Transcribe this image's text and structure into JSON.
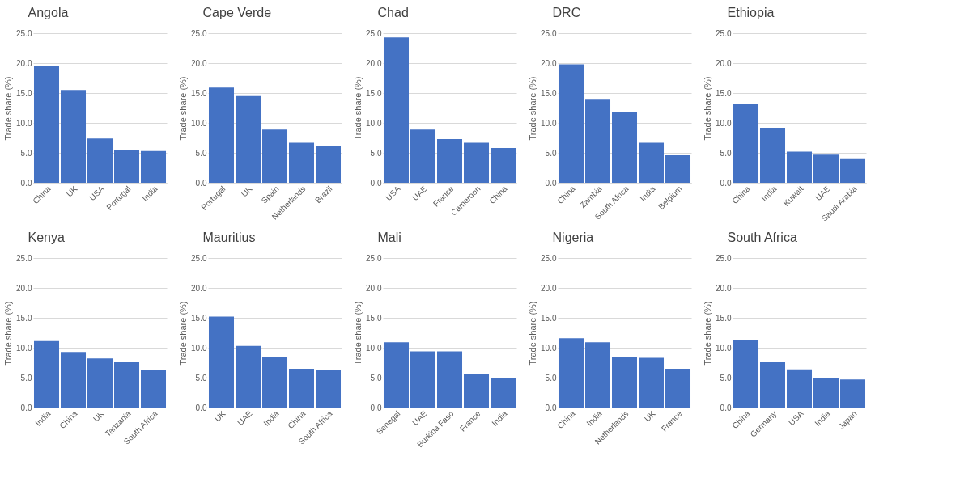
{
  "chart_data": [
    {
      "type": "bar",
      "title": "Angola",
      "ylabel": "Trade share (%)",
      "categories": [
        "China",
        "UK",
        "USA",
        "Portugal",
        "India"
      ],
      "values": [
        19.5,
        15.5,
        7.4,
        5.4,
        5.3
      ],
      "color": "#4472c4",
      "ylim": [
        0,
        25
      ],
      "yticks": [
        {
          "value": 0,
          "label": "0.0"
        },
        {
          "value": 5,
          "label": "5.0"
        },
        {
          "value": 10,
          "label": "10.0"
        },
        {
          "value": 15,
          "label": "15.0"
        },
        {
          "value": 20,
          "label": "20.0"
        },
        {
          "value": 25,
          "label": "25.0"
        }
      ],
      "grid": "y"
    },
    {
      "type": "bar",
      "title": "Cape Verde",
      "ylabel": "Trade share (%)",
      "categories": [
        "Portugal",
        "UK",
        "Spain",
        "Netherlands",
        "Brazil"
      ],
      "values": [
        15.9,
        14.5,
        8.9,
        6.7,
        6.1
      ],
      "color": "#4472c4",
      "ylim": [
        0,
        25
      ],
      "yticks": [
        {
          "value": 0,
          "label": "0.0"
        },
        {
          "value": 5,
          "label": "5.0"
        },
        {
          "value": 10,
          "label": "10.0"
        },
        {
          "value": 15,
          "label": "15.0"
        },
        {
          "value": 20,
          "label": "20.0"
        },
        {
          "value": 25,
          "label": "25.0"
        }
      ],
      "grid": "y"
    },
    {
      "type": "bar",
      "title": "Chad",
      "ylabel": "Trade share (%)",
      "categories": [
        "USA",
        "UAE",
        "France",
        "Cameroon",
        "China"
      ],
      "values": [
        24.3,
        8.9,
        7.3,
        6.7,
        5.8
      ],
      "color": "#4472c4",
      "ylim": [
        0,
        25
      ],
      "yticks": [
        {
          "value": 0,
          "label": "0.0"
        },
        {
          "value": 5,
          "label": "5.0"
        },
        {
          "value": 10,
          "label": "10.0"
        },
        {
          "value": 15,
          "label": "15.0"
        },
        {
          "value": 20,
          "label": "20.0"
        },
        {
          "value": 25,
          "label": "25.0"
        }
      ],
      "grid": "y"
    },
    {
      "type": "bar",
      "title": "DRC",
      "ylabel": "Trade share (%)",
      "categories": [
        "China",
        "Zambia",
        "South Africa",
        "India",
        "Belgium"
      ],
      "values": [
        19.8,
        13.9,
        11.9,
        6.7,
        4.6
      ],
      "color": "#4472c4",
      "ylim": [
        0,
        25
      ],
      "yticks": [
        {
          "value": 0,
          "label": "0.0"
        },
        {
          "value": 5,
          "label": "5.0"
        },
        {
          "value": 10,
          "label": "10.0"
        },
        {
          "value": 15,
          "label": "15.0"
        },
        {
          "value": 20,
          "label": "20.0"
        },
        {
          "value": 25,
          "label": "25.0"
        }
      ],
      "grid": "y"
    },
    {
      "type": "bar",
      "title": "Ethiopia",
      "ylabel": "Trade share (%)",
      "categories": [
        "China",
        "India",
        "Kuwait",
        "UAE",
        "Saudi Arabia"
      ],
      "values": [
        13.1,
        9.2,
        5.2,
        4.7,
        4.1
      ],
      "color": "#4472c4",
      "ylim": [
        0,
        25
      ],
      "yticks": [
        {
          "value": 0,
          "label": "0.0"
        },
        {
          "value": 5,
          "label": "5.0"
        },
        {
          "value": 10,
          "label": "10.0"
        },
        {
          "value": 15,
          "label": "15.0"
        },
        {
          "value": 20,
          "label": "20.0"
        },
        {
          "value": 25,
          "label": "25.0"
        }
      ],
      "grid": "y"
    },
    {
      "type": "bar",
      "title": "Kenya",
      "ylabel": "Trade share (%)",
      "categories": [
        "India",
        "China",
        "UK",
        "Tanzania",
        "South Africa"
      ],
      "values": [
        11.1,
        9.3,
        8.2,
        7.6,
        6.3
      ],
      "color": "#4472c4",
      "ylim": [
        0,
        25
      ],
      "yticks": [
        {
          "value": 0,
          "label": "0.0"
        },
        {
          "value": 5,
          "label": "5.0"
        },
        {
          "value": 10,
          "label": "10.0"
        },
        {
          "value": 15,
          "label": "15.0"
        },
        {
          "value": 20,
          "label": "20.0"
        },
        {
          "value": 25,
          "label": "25.0"
        }
      ],
      "grid": "y"
    },
    {
      "type": "bar",
      "title": "Mauritius",
      "ylabel": "Trade share (%)",
      "categories": [
        "UK",
        "UAE",
        "India",
        "China",
        "South Africa"
      ],
      "values": [
        15.2,
        10.3,
        8.4,
        6.5,
        6.3
      ],
      "color": "#4472c4",
      "ylim": [
        0,
        25
      ],
      "yticks": [
        {
          "value": 0,
          "label": "0.0"
        },
        {
          "value": 5,
          "label": "5.0"
        },
        {
          "value": 10,
          "label": "10.0"
        },
        {
          "value": 15,
          "label": "15.0"
        },
        {
          "value": 20,
          "label": "20.0"
        },
        {
          "value": 25,
          "label": "25.0"
        }
      ],
      "grid": "y"
    },
    {
      "type": "bar",
      "title": "Mali",
      "ylabel": "Trade share (%)",
      "categories": [
        "Senegal",
        "UAE",
        "Burkina Faso",
        "France",
        "India"
      ],
      "values": [
        10.9,
        9.4,
        9.4,
        5.6,
        4.9
      ],
      "color": "#4472c4",
      "ylim": [
        0,
        25
      ],
      "yticks": [
        {
          "value": 0,
          "label": "0.0"
        },
        {
          "value": 5,
          "label": "5.0"
        },
        {
          "value": 10,
          "label": "10.0"
        },
        {
          "value": 15,
          "label": "15.0"
        },
        {
          "value": 20,
          "label": "20.0"
        },
        {
          "value": 25,
          "label": "25.0"
        }
      ],
      "grid": "y"
    },
    {
      "type": "bar",
      "title": "Nigeria",
      "ylabel": "Trade share (%)",
      "categories": [
        "China",
        "India",
        "Netherlands",
        "UK",
        "France"
      ],
      "values": [
        11.6,
        10.9,
        8.4,
        8.3,
        6.5
      ],
      "color": "#4472c4",
      "ylim": [
        0,
        25
      ],
      "yticks": [
        {
          "value": 0,
          "label": "0.0"
        },
        {
          "value": 5,
          "label": "5.0"
        },
        {
          "value": 10,
          "label": "10.0"
        },
        {
          "value": 15,
          "label": "15.0"
        },
        {
          "value": 20,
          "label": "20.0"
        },
        {
          "value": 25,
          "label": "25.0"
        }
      ],
      "grid": "y"
    },
    {
      "type": "bar",
      "title": "South Africa",
      "ylabel": "Trade share (%)",
      "categories": [
        "China",
        "Germany",
        "USA",
        "India",
        "Japan"
      ],
      "values": [
        11.2,
        7.6,
        6.4,
        5.0,
        4.7
      ],
      "color": "#4472c4",
      "ylim": [
        0,
        25
      ],
      "yticks": [
        {
          "value": 0,
          "label": "0.0"
        },
        {
          "value": 5,
          "label": "5.0"
        },
        {
          "value": 10,
          "label": "10.0"
        },
        {
          "value": 15,
          "label": "15.0"
        },
        {
          "value": 20,
          "label": "20.0"
        },
        {
          "value": 25,
          "label": "25.0"
        }
      ],
      "grid": "y"
    }
  ]
}
